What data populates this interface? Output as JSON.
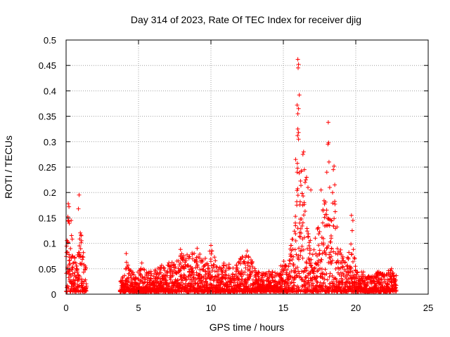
{
  "chart_data": {
    "type": "scatter",
    "title": "Day 314 of 2023, Rate Of TEC Index for receiver djig",
    "xlabel": "GPS time / hours",
    "ylabel": "ROTI / TECUs",
    "xlim": [
      0,
      25
    ],
    "ylim": [
      0,
      0.5
    ],
    "grid": true,
    "marker": "+",
    "series_color": "#ff0000",
    "x_ticks": [
      0,
      5,
      10,
      15,
      20,
      25
    ],
    "x_tick_labels": [
      "0",
      "5",
      "10",
      "15",
      "20",
      "25"
    ],
    "y_ticks": [
      0,
      0.05,
      0.1,
      0.15,
      0.2,
      0.25,
      0.3,
      0.35,
      0.4,
      0.45,
      0.5
    ],
    "y_tick_labels": [
      "0",
      "0.05",
      "0.1",
      "0.15",
      "0.2",
      "0.25",
      "0.3",
      "0.35",
      "0.4",
      "0.45",
      "0.5"
    ],
    "envelope": [
      [
        0.0,
        0.08
      ],
      [
        0.1,
        0.16
      ],
      [
        0.2,
        0.18
      ],
      [
        0.3,
        0.14
      ],
      [
        0.5,
        0.08
      ],
      [
        0.7,
        0.06
      ],
      [
        0.9,
        0.11
      ],
      [
        1.0,
        0.12
      ],
      [
        1.2,
        0.07
      ],
      [
        1.4,
        0.04
      ],
      [
        3.7,
        0.02
      ],
      [
        4.0,
        0.04
      ],
      [
        4.2,
        0.07
      ],
      [
        4.5,
        0.04
      ],
      [
        5.0,
        0.04
      ],
      [
        5.2,
        0.06
      ],
      [
        5.5,
        0.04
      ],
      [
        6.0,
        0.045
      ],
      [
        6.8,
        0.055
      ],
      [
        7.5,
        0.06
      ],
      [
        8.0,
        0.08
      ],
      [
        8.5,
        0.07
      ],
      [
        9.0,
        0.09
      ],
      [
        9.5,
        0.06
      ],
      [
        10.0,
        0.09
      ],
      [
        10.5,
        0.05
      ],
      [
        11.0,
        0.06
      ],
      [
        11.5,
        0.05
      ],
      [
        12.0,
        0.07
      ],
      [
        12.5,
        0.08
      ],
      [
        13.0,
        0.05
      ],
      [
        13.5,
        0.04
      ],
      [
        14.0,
        0.04
      ],
      [
        14.5,
        0.04
      ],
      [
        15.0,
        0.06
      ],
      [
        15.3,
        0.05
      ],
      [
        15.6,
        0.12
      ],
      [
        15.9,
        0.2
      ],
      [
        16.0,
        0.3
      ],
      [
        16.3,
        0.22
      ],
      [
        16.6,
        0.14
      ],
      [
        17.0,
        0.08
      ],
      [
        17.3,
        0.12
      ],
      [
        17.6,
        0.15
      ],
      [
        17.9,
        0.2
      ],
      [
        18.2,
        0.16
      ],
      [
        18.5,
        0.19
      ],
      [
        18.8,
        0.1
      ],
      [
        19.2,
        0.06
      ],
      [
        19.5,
        0.08
      ],
      [
        19.8,
        0.11
      ],
      [
        20.0,
        0.04
      ],
      [
        20.5,
        0.04
      ],
      [
        21.0,
        0.03
      ],
      [
        21.5,
        0.04
      ],
      [
        22.0,
        0.035
      ],
      [
        22.5,
        0.05
      ],
      [
        22.8,
        0.045
      ]
    ],
    "highlights": [
      [
        0.15,
        0.178
      ],
      [
        0.2,
        0.172
      ],
      [
        0.35,
        0.145
      ],
      [
        0.9,
        0.195
      ],
      [
        0.85,
        0.168
      ],
      [
        1.05,
        0.115
      ],
      [
        4.15,
        0.08
      ],
      [
        7.9,
        0.088
      ],
      [
        9.05,
        0.09
      ],
      [
        10.0,
        0.096
      ],
      [
        12.5,
        0.085
      ],
      [
        16.0,
        0.462
      ],
      [
        16.05,
        0.452
      ],
      [
        16.02,
        0.445
      ],
      [
        16.1,
        0.392
      ],
      [
        15.95,
        0.372
      ],
      [
        16.05,
        0.365
      ],
      [
        16.0,
        0.355
      ],
      [
        16.0,
        0.325
      ],
      [
        16.05,
        0.318
      ],
      [
        15.98,
        0.312
      ],
      [
        16.05,
        0.305
      ],
      [
        16.4,
        0.28
      ],
      [
        16.35,
        0.275
      ],
      [
        15.85,
        0.265
      ],
      [
        16.45,
        0.245
      ],
      [
        15.95,
        0.24
      ],
      [
        16.6,
        0.23
      ],
      [
        16.55,
        0.225
      ],
      [
        16.5,
        0.22
      ],
      [
        16.7,
        0.21
      ],
      [
        16.9,
        0.205
      ],
      [
        18.1,
        0.338
      ],
      [
        18.12,
        0.298
      ],
      [
        18.08,
        0.295
      ],
      [
        18.15,
        0.26
      ],
      [
        18.5,
        0.252
      ],
      [
        18.45,
        0.245
      ],
      [
        18.0,
        0.24
      ],
      [
        18.55,
        0.215
      ],
      [
        18.2,
        0.21
      ],
      [
        17.6,
        0.205
      ],
      [
        18.4,
        0.2
      ],
      [
        19.7,
        0.155
      ],
      [
        19.8,
        0.145
      ],
      [
        19.75,
        0.125
      ]
    ]
  }
}
